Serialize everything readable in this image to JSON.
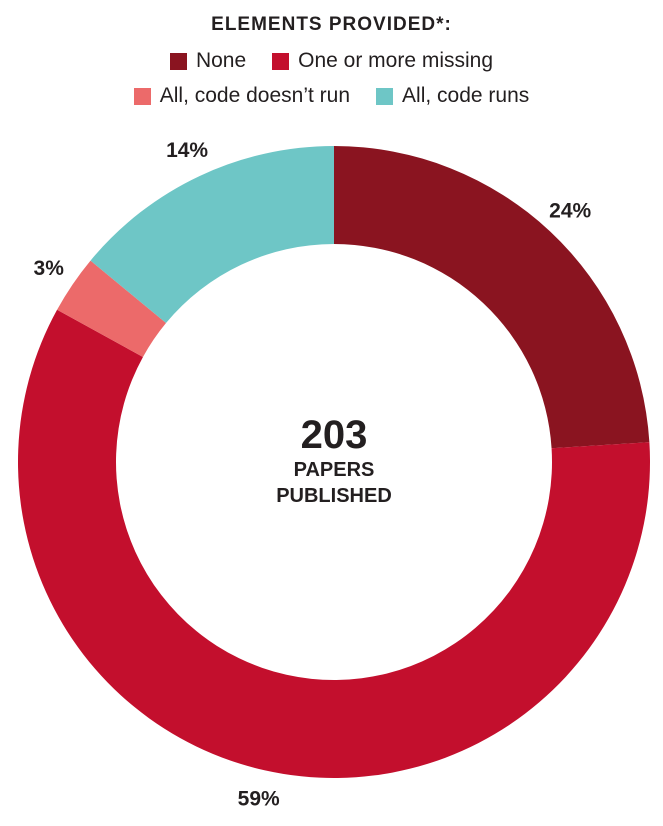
{
  "legend": {
    "title": "ELEMENTS PROVIDED*:",
    "items": [
      {
        "label": "None",
        "color": "#8a1420"
      },
      {
        "label": "One or more missing",
        "color": "#c30f2d"
      },
      {
        "label": "All, code doesn’t run",
        "color": "#ec6a6a"
      },
      {
        "label": "All, code runs",
        "color": "#6ec6c6"
      }
    ]
  },
  "center": {
    "number": "203",
    "line1": "PAPERS",
    "line2": "PUBLISHED"
  },
  "chart_data": {
    "type": "pie",
    "donut": true,
    "title": "ELEMENTS PROVIDED*:",
    "total": 203,
    "series": [
      {
        "name": "None",
        "value": 24,
        "label": "24%",
        "color": "#8a1420"
      },
      {
        "name": "One or more missing",
        "value": 59,
        "label": "59%",
        "color": "#c30f2d"
      },
      {
        "name": "All, code doesn’t run",
        "value": 3,
        "label": "3%",
        "color": "#ec6a6a"
      },
      {
        "name": "All, code runs",
        "value": 14,
        "label": "14%",
        "color": "#6ec6c6"
      }
    ],
    "legend_position": "top"
  }
}
